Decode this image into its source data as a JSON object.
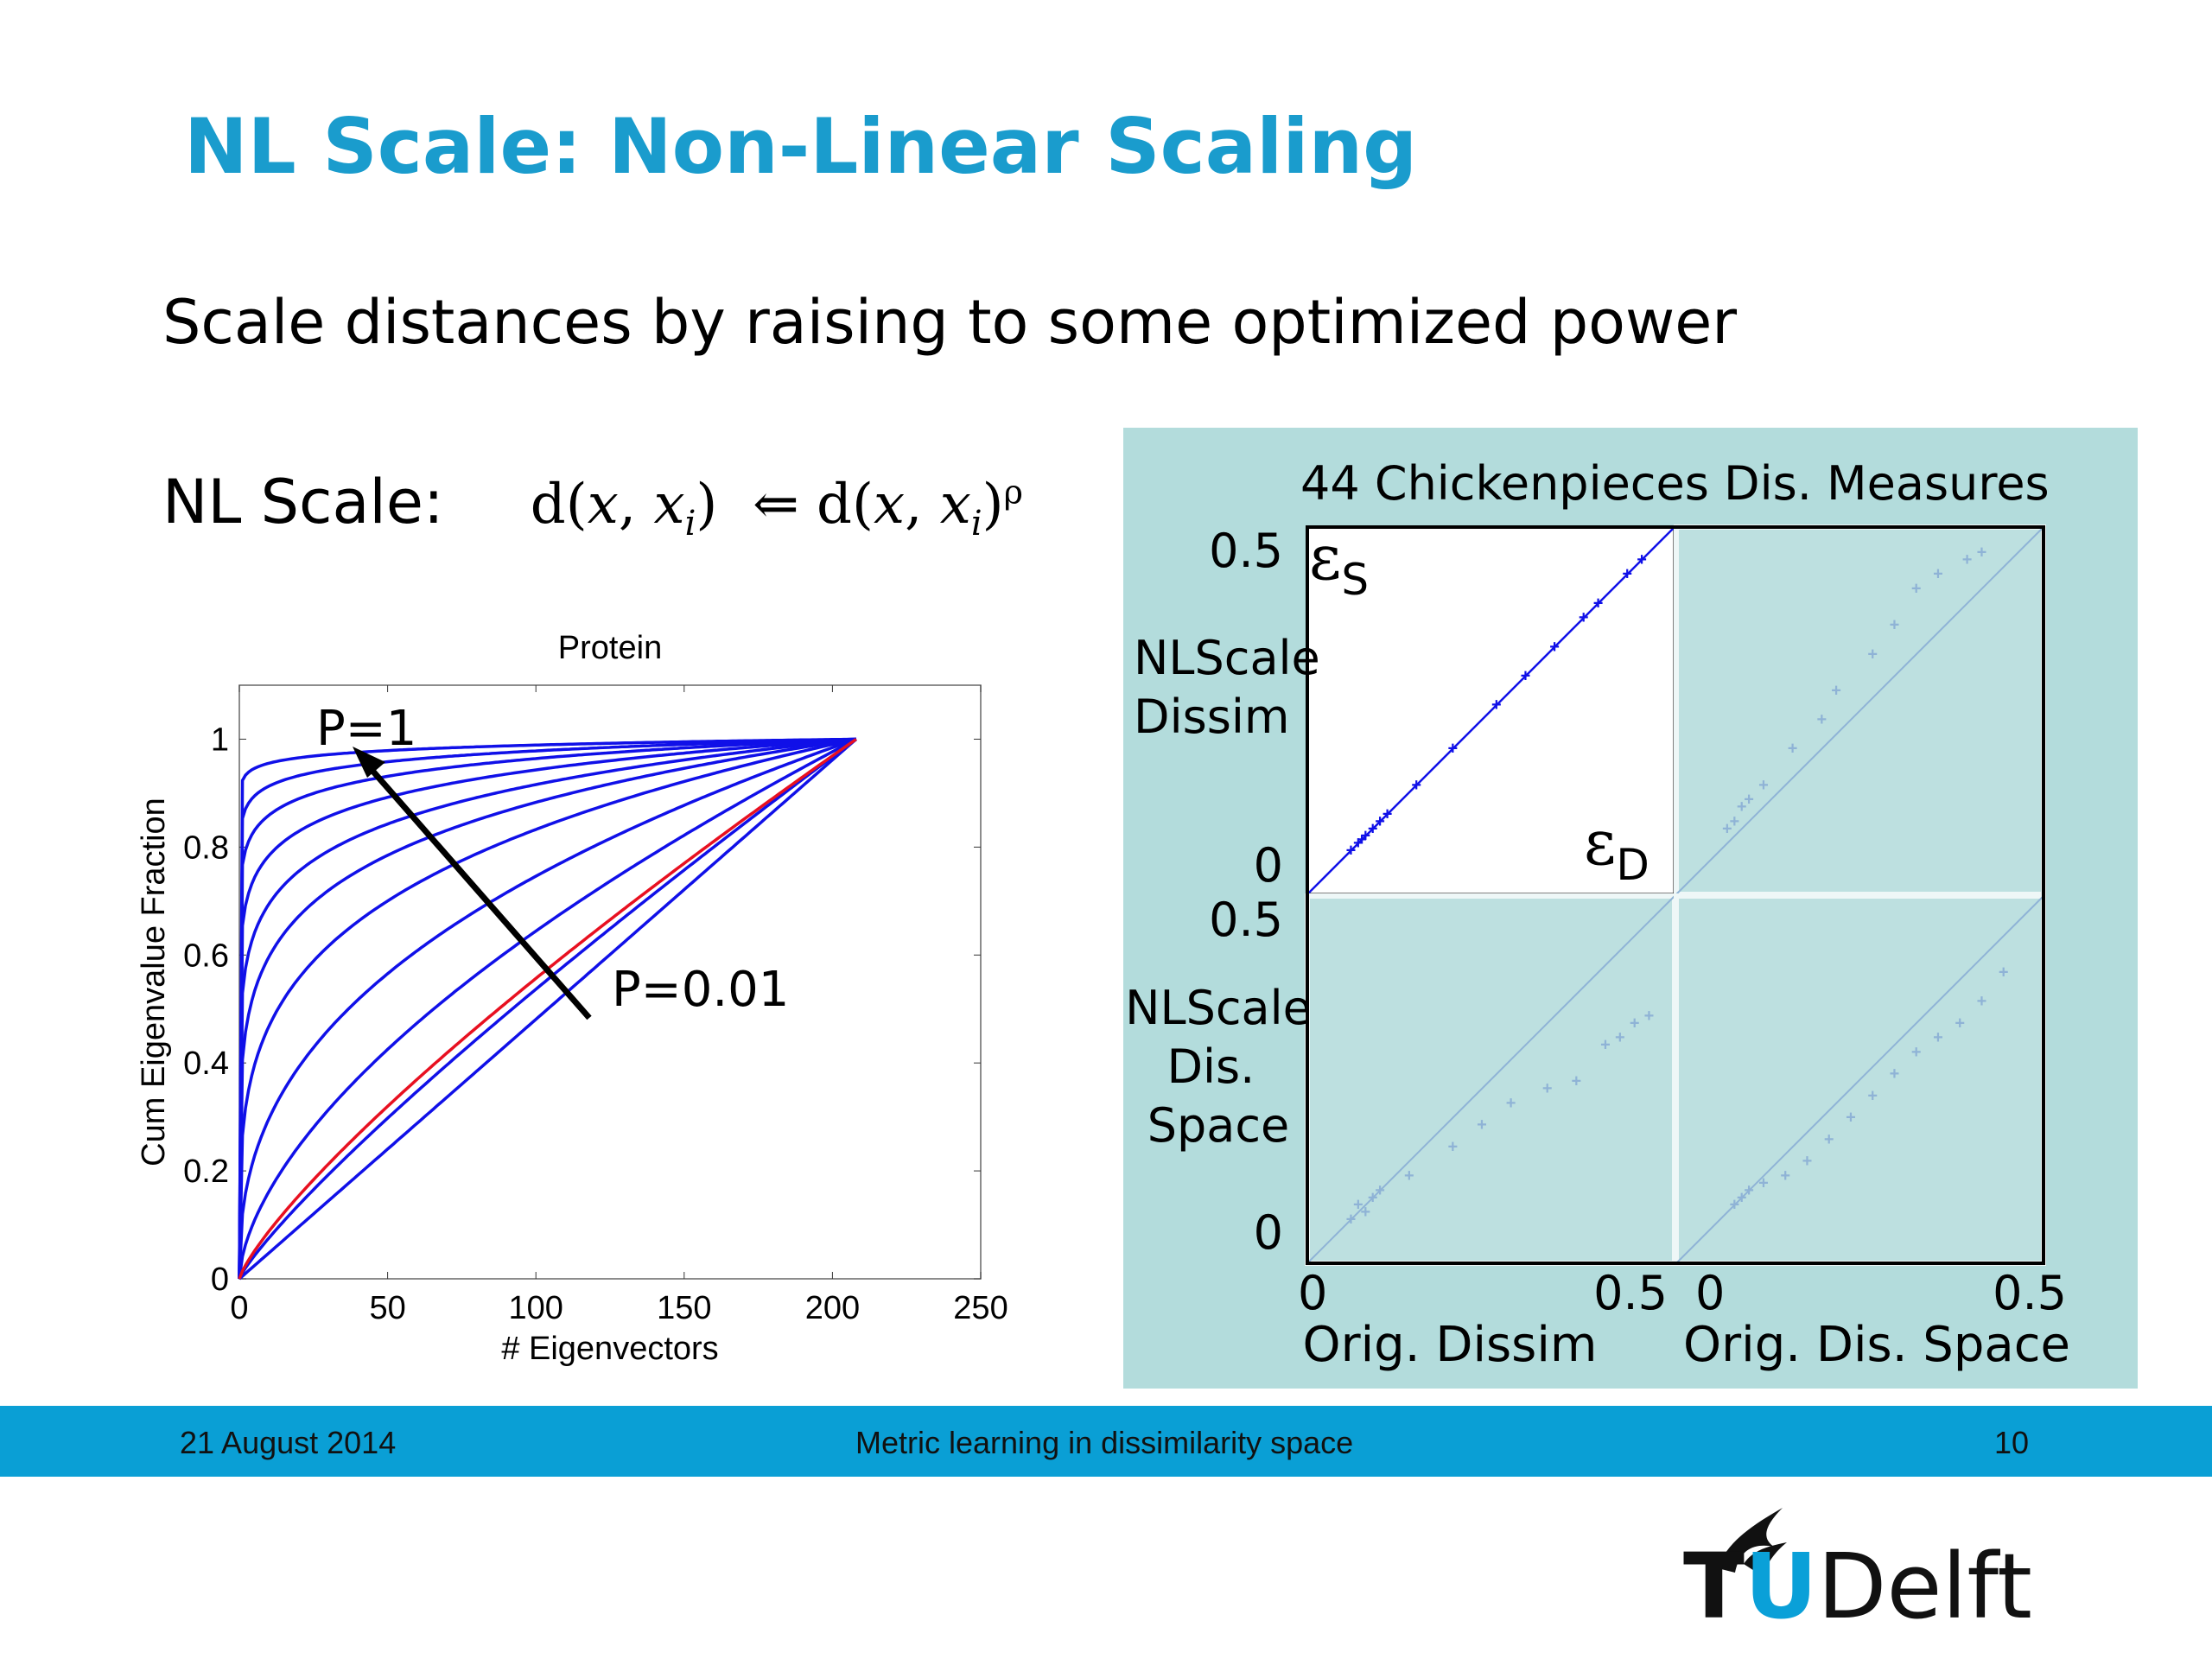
{
  "slide": {
    "title": "NL Scale: Non-Linear Scaling",
    "subtitle": "Scale distances by raising to some optimized power",
    "formula_label": "NL Scale:",
    "formula": "d(x, xᵢ) ⇐ d(x, xᵢ)ᵖ"
  },
  "footer": {
    "date": "21 August 2014",
    "center_text": "Metric learning in dissimilarity space",
    "page_number": "10"
  },
  "logo": {
    "text_t": "T",
    "text_u": "U",
    "text_rest": "Delft"
  },
  "colors": {
    "title": "#1a9ccd",
    "footer_bar": "#0a9fd5",
    "panel_bg": "#b3dcdc",
    "blue_curve": "#1010e8",
    "red_curve": "#e81020"
  },
  "chart_data": [
    {
      "type": "line",
      "title": "Protein",
      "xlabel": "# Eigenvectors",
      "ylabel": "Cum Eigenvalue Fraction",
      "xlim": [
        0,
        250
      ],
      "ylim": [
        0,
        1.1
      ],
      "xticks": [
        "0",
        "50",
        "100",
        "150",
        "200",
        "250"
      ],
      "yticks": [
        "0",
        "0.2",
        "0.4",
        "0.6",
        "0.8",
        "1"
      ],
      "annotations": [
        "P=1",
        "P=0.01"
      ],
      "grid": false,
      "series_shape_exponents": [
        0.015,
        0.03,
        0.05,
        0.08,
        0.12,
        0.17,
        0.25,
        0.4,
        0.6,
        0.85,
        1.0
      ],
      "red_series_exponent": 0.8,
      "x_end": 208,
      "series": [
        {
          "values_at": {
            "0": 0,
            "208": 1
          }
        }
      ]
    },
    {
      "type": "scatter",
      "title": "44 Chickenpieces Dis. Measures",
      "row_labels": [
        "NLScale Dissim",
        "NLScale Dis. Space"
      ],
      "col_labels": [
        "Orig. Dissim",
        "Orig. Dis. Space"
      ],
      "tick_labels": {
        "ymax": "0.5",
        "ymin": "0",
        "xmin": "0",
        "xmax": "0.5"
      },
      "corner_labels": [
        "εS",
        "εD"
      ],
      "panels": [
        {
          "name": "NLScale Dissim vs Orig. Dissim",
          "highlighted": true,
          "points": [
            [
              0.06,
              0.06
            ],
            [
              0.07,
              0.07
            ],
            [
              0.075,
              0.075
            ],
            [
              0.08,
              0.08
            ],
            [
              0.09,
              0.09
            ],
            [
              0.1,
              0.1
            ],
            [
              0.11,
              0.11
            ],
            [
              0.15,
              0.15
            ],
            [
              0.2,
              0.2
            ],
            [
              0.26,
              0.26
            ],
            [
              0.3,
              0.3
            ],
            [
              0.34,
              0.34
            ],
            [
              0.38,
              0.38
            ],
            [
              0.4,
              0.4
            ],
            [
              0.44,
              0.44
            ],
            [
              0.46,
              0.46
            ]
          ]
        },
        {
          "name": "NLScale Dissim vs Orig. Dis. Space",
          "highlighted": false,
          "points": [
            [
              0.07,
              0.09
            ],
            [
              0.08,
              0.1
            ],
            [
              0.09,
              0.12
            ],
            [
              0.1,
              0.13
            ],
            [
              0.12,
              0.15
            ],
            [
              0.16,
              0.2
            ],
            [
              0.2,
              0.24
            ],
            [
              0.22,
              0.28
            ],
            [
              0.27,
              0.33
            ],
            [
              0.3,
              0.37
            ],
            [
              0.33,
              0.42
            ],
            [
              0.36,
              0.44
            ],
            [
              0.4,
              0.46
            ],
            [
              0.42,
              0.47
            ]
          ]
        },
        {
          "name": "NLScale Dis. Space vs Orig. Dissim",
          "highlighted": false,
          "points": [
            [
              0.06,
              0.06
            ],
            [
              0.07,
              0.08
            ],
            [
              0.08,
              0.07
            ],
            [
              0.09,
              0.09
            ],
            [
              0.1,
              0.1
            ],
            [
              0.14,
              0.12
            ],
            [
              0.2,
              0.16
            ],
            [
              0.24,
              0.19
            ],
            [
              0.28,
              0.22
            ],
            [
              0.33,
              0.24
            ],
            [
              0.37,
              0.25
            ],
            [
              0.41,
              0.3
            ],
            [
              0.43,
              0.31
            ],
            [
              0.45,
              0.33
            ],
            [
              0.47,
              0.34
            ]
          ]
        },
        {
          "name": "NLScale Dis. Space vs Orig. Dis. Space",
          "highlighted": false,
          "points": [
            [
              0.08,
              0.08
            ],
            [
              0.09,
              0.09
            ],
            [
              0.1,
              0.1
            ],
            [
              0.12,
              0.11
            ],
            [
              0.15,
              0.12
            ],
            [
              0.18,
              0.14
            ],
            [
              0.21,
              0.17
            ],
            [
              0.24,
              0.2
            ],
            [
              0.27,
              0.23
            ],
            [
              0.3,
              0.26
            ],
            [
              0.33,
              0.29
            ],
            [
              0.36,
              0.31
            ],
            [
              0.39,
              0.33
            ],
            [
              0.42,
              0.36
            ],
            [
              0.45,
              0.4
            ]
          ]
        }
      ]
    }
  ]
}
